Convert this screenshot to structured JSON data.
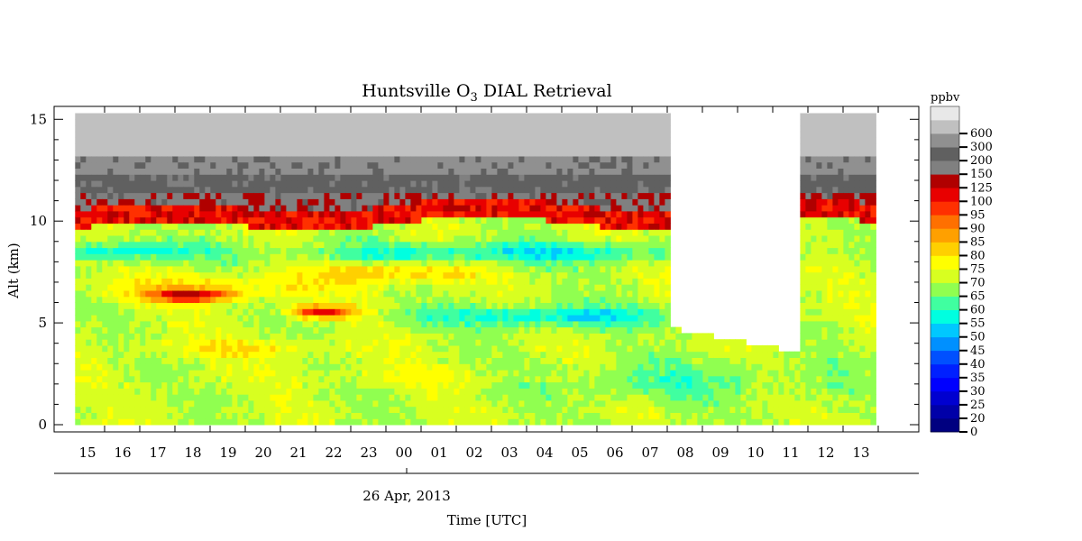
{
  "chart_data": {
    "type": "heatmap",
    "title": "Huntsville O",
    "title_subscript": "3",
    "title_suffix": " DIAL Retrieval",
    "ylabel": "Alt (km)",
    "xlabel": "Time [UTC]",
    "date_label": "26 Apr, 2013",
    "ylim": [
      0,
      15.5
    ],
    "yticks": [
      "0",
      "5",
      "10",
      "15"
    ],
    "xticks": [
      "15",
      "16",
      "17",
      "18",
      "19",
      "20",
      "21",
      "22",
      "23",
      "00",
      "01",
      "02",
      "03",
      "04",
      "05",
      "06",
      "07",
      "08",
      "09",
      "10",
      "11",
      "12",
      "13"
    ],
    "colorbar": {
      "unit": "ppbv",
      "levels": [
        "0",
        "20",
        "25",
        "30",
        "35",
        "40",
        "45",
        "50",
        "55",
        "60",
        "65",
        "70",
        "75",
        "80",
        "85",
        "90",
        "95",
        "100",
        "125",
        "150",
        "200",
        "300",
        "600"
      ],
      "colors": [
        "#000080",
        "#0000a8",
        "#0000d0",
        "#0000ff",
        "#0020ff",
        "#0050ff",
        "#0090ff",
        "#00c8ff",
        "#00ffe0",
        "#40ffa0",
        "#90ff50",
        "#d8ff20",
        "#ffff00",
        "#ffd000",
        "#ffa000",
        "#ff7000",
        "#ff3000",
        "#e80000",
        "#b00000",
        "#808080",
        "#606060",
        "#909090",
        "#c0c0c0",
        "#e8e8e8"
      ]
    },
    "data_gap": {
      "start_hour": 7.5,
      "end_hour": 11.2
    }
  }
}
